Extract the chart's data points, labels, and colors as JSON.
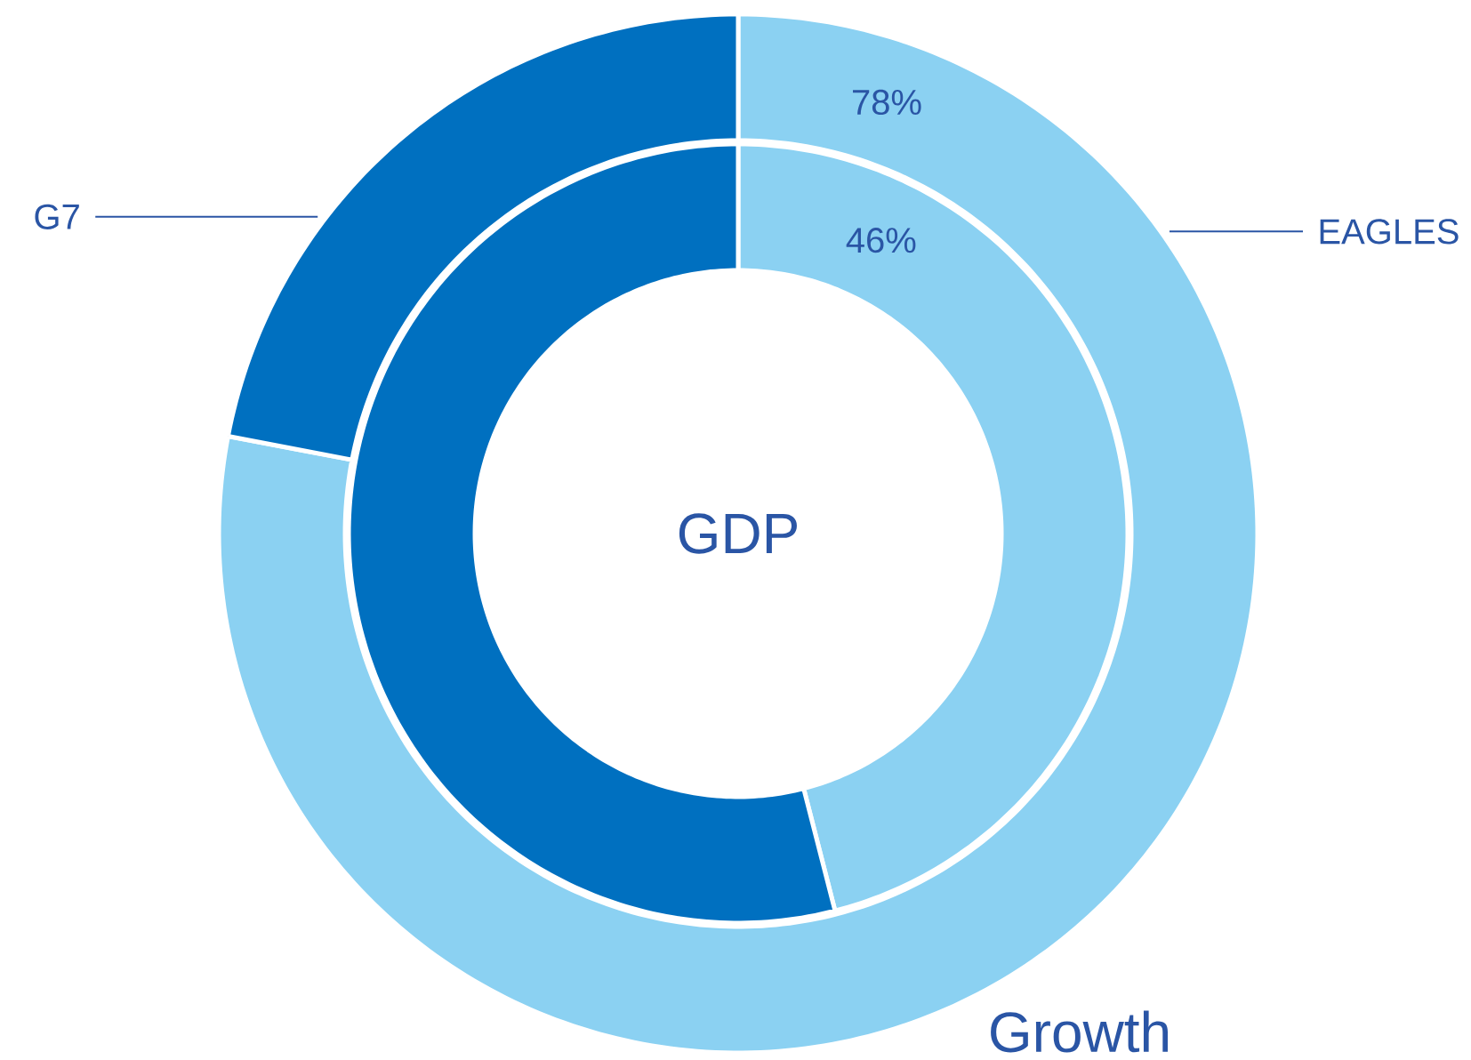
{
  "chart_data": {
    "type": "donut",
    "categories": [
      "EAGLES",
      "G7"
    ],
    "colors": [
      "#8bd1f2",
      "#0070c0"
    ],
    "series": [
      {
        "name": "Growth",
        "values": [
          78,
          22
        ],
        "value_labels": [
          "78%",
          null
        ]
      },
      {
        "name": "GDP",
        "values": [
          46,
          54
        ],
        "value_labels": [
          "46%",
          null
        ]
      }
    ]
  }
}
